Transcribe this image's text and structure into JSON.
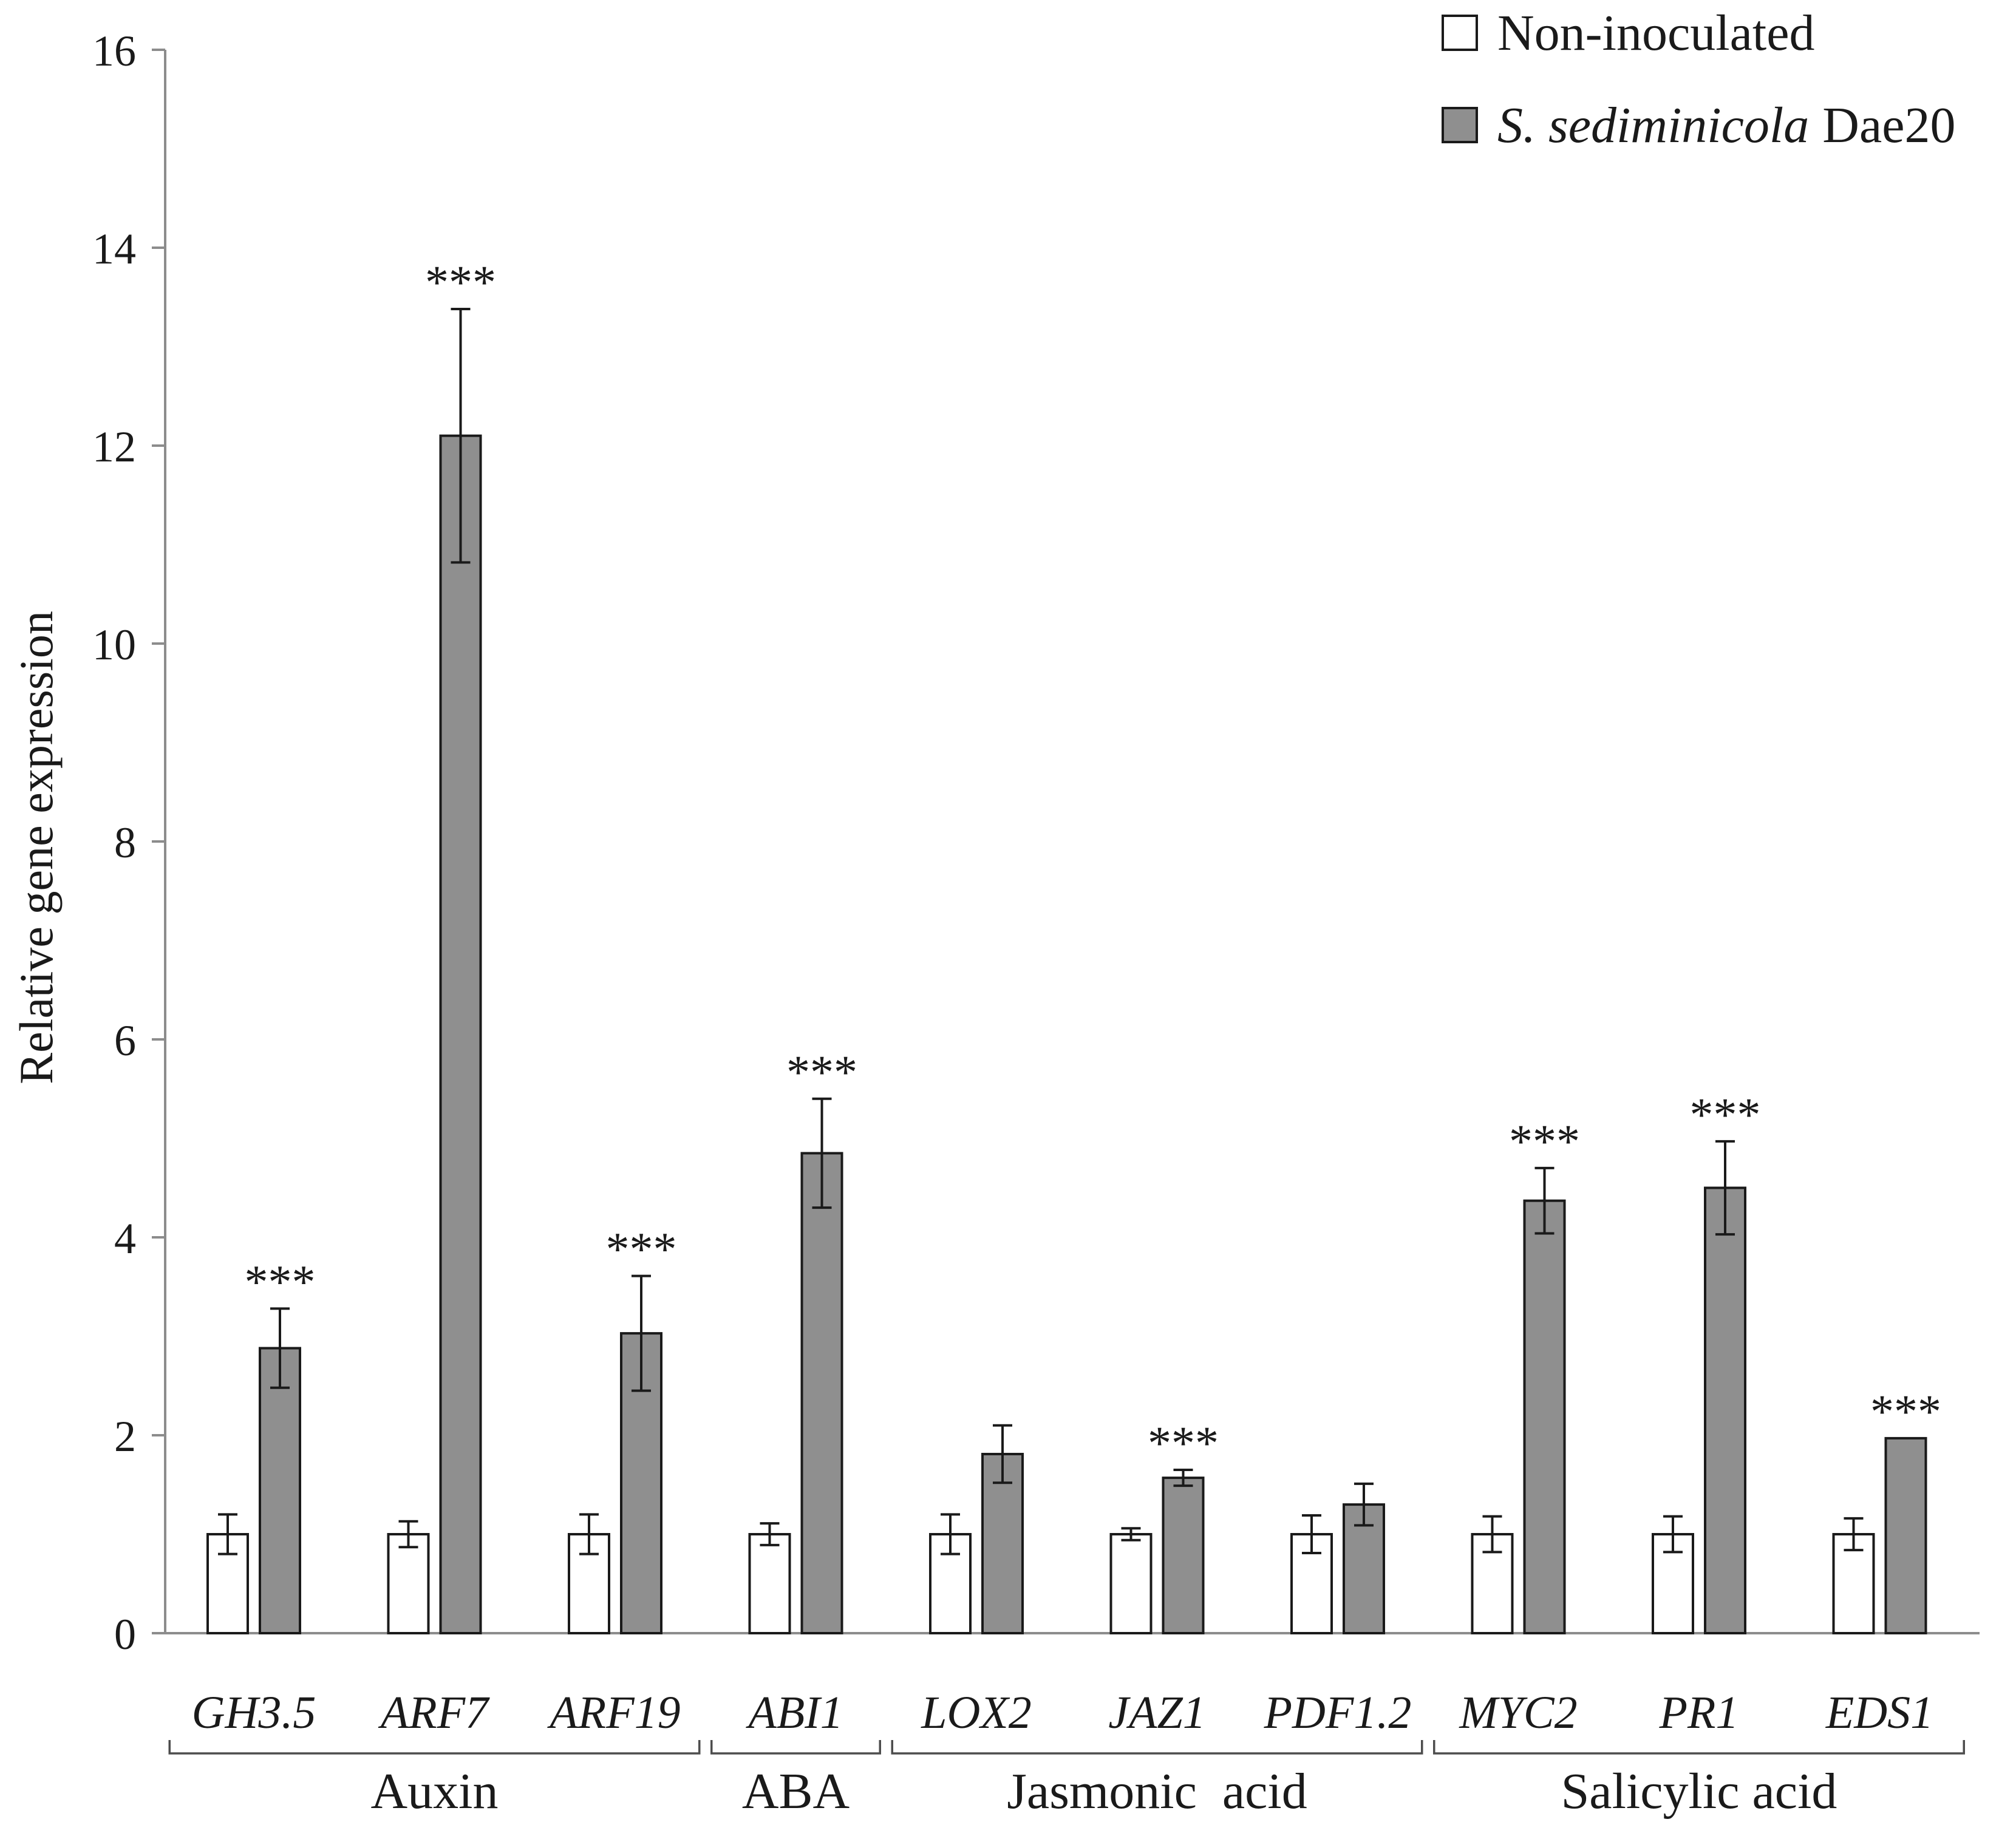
{
  "chart_data": {
    "type": "bar",
    "title": "",
    "xlabel": "",
    "ylabel": "Relative gene expression",
    "ylim": [
      0,
      16
    ],
    "yticks": [
      "0",
      "2",
      "4",
      "6",
      "8",
      "10",
      "12",
      "14",
      "16"
    ],
    "legend_position": "top-right",
    "categories": [
      "GH3.5",
      "ARF7",
      "ARF19",
      "ABI1",
      "LOX2",
      "JAZ1",
      "PDF1.2",
      "MYC2",
      "PR1",
      "EDS1"
    ],
    "series": [
      {
        "name": "Non-inoculated",
        "legend_text": "Non-inoculated",
        "color": "#ffffff",
        "values": [
          1.0,
          1.0,
          1.0,
          1.0,
          1.0,
          1.0,
          1.0,
          1.0,
          1.0,
          1.0
        ],
        "errors": [
          0.2,
          0.13,
          0.2,
          0.11,
          0.2,
          0.06,
          0.19,
          0.18,
          0.18,
          0.16
        ]
      },
      {
        "name": "S. sediminicola Dae20",
        "legend_italic": "S. sediminicola",
        "legend_rest": "Dae20",
        "color": "#8f8f8f",
        "values": [
          2.88,
          12.1,
          3.03,
          4.85,
          1.81,
          1.57,
          1.3,
          4.37,
          4.5,
          1.97
        ],
        "errors": [
          0.4,
          1.28,
          0.58,
          0.55,
          0.29,
          0.08,
          0.21,
          0.33,
          0.47,
          0.0
        ]
      }
    ],
    "significance": [
      "***",
      "***",
      "***",
      "***",
      "",
      "***",
      "",
      "***",
      "***",
      "***"
    ],
    "groups": [
      {
        "label": "Auxin",
        "genes": [
          "GH3.5",
          "ARF7",
          "ARF19"
        ]
      },
      {
        "label": "ABA",
        "genes": [
          "ABI1"
        ]
      },
      {
        "label": "Jasmonic  acid",
        "genes": [
          "LOX2",
          "JAZ1",
          "PDF1.2"
        ]
      },
      {
        "label": "Salicylic acid",
        "genes": [
          "MYC2",
          "PR1",
          "EDS1"
        ]
      }
    ]
  }
}
